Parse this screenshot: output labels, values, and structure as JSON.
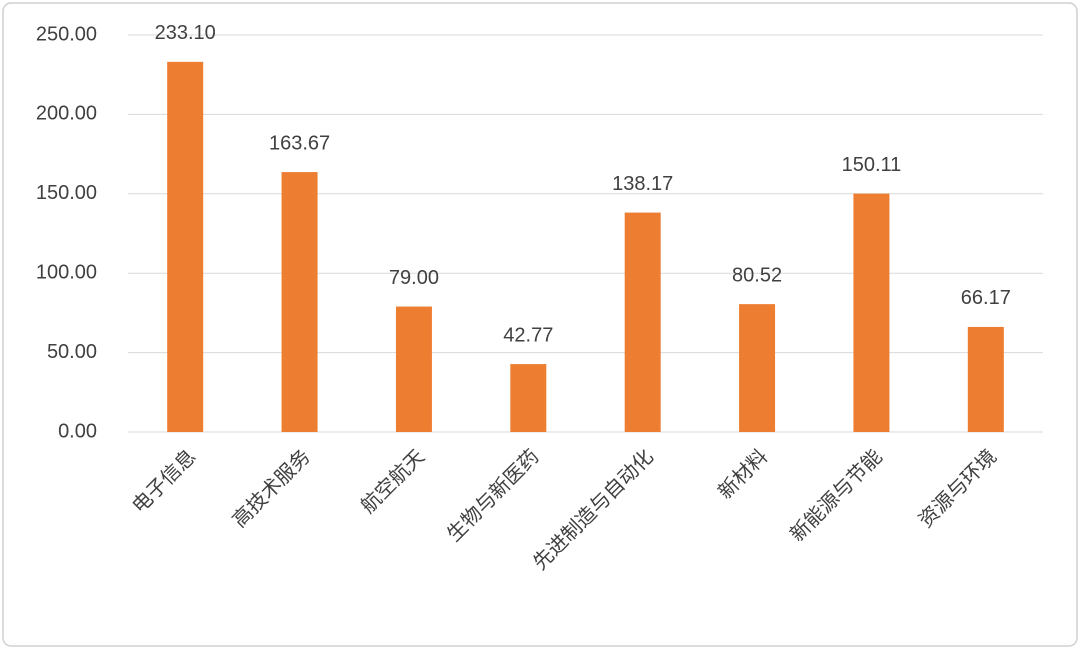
{
  "chart_data": {
    "type": "bar",
    "categories": [
      "电子信息",
      "高技术服务",
      "航空航天",
      "生物与新医药",
      "先进制造与自动化",
      "新材料",
      "新能源与节能",
      "资源与环境"
    ],
    "values": [
      233.1,
      163.67,
      79.0,
      42.77,
      138.17,
      80.52,
      150.11,
      66.17
    ],
    "value_labels": [
      "233.10",
      "163.67",
      "79.00",
      "42.77",
      "138.17",
      "80.52",
      "150.11",
      "66.17"
    ],
    "color": "#ed7d31",
    "ylim": [
      0,
      250
    ],
    "yticks": [
      {
        "value": 0,
        "label": "0.00"
      },
      {
        "value": 50,
        "label": "50.00"
      },
      {
        "value": 100,
        "label": "100.00"
      },
      {
        "value": 150,
        "label": "150.00"
      },
      {
        "value": 200,
        "label": "200.00"
      },
      {
        "value": 250,
        "label": "250.00"
      }
    ],
    "grid": true
  }
}
